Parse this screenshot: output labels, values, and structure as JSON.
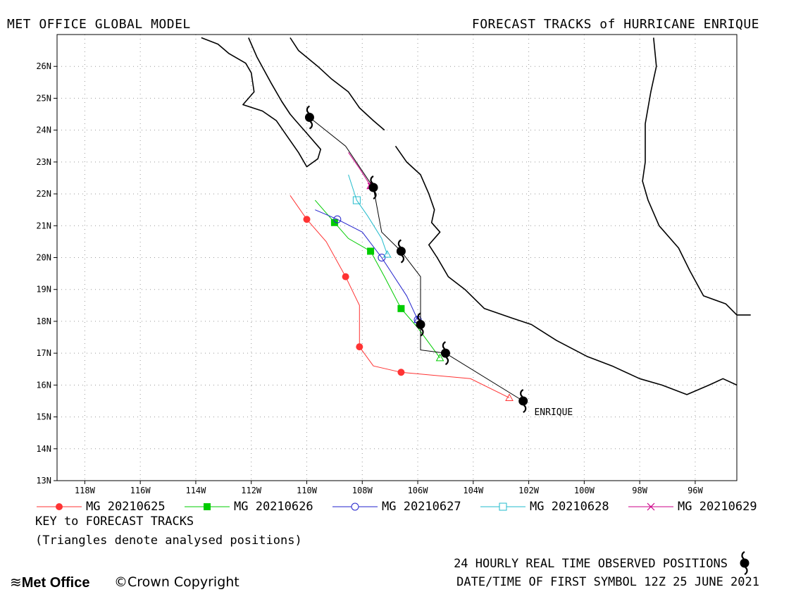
{
  "header": {
    "left": "MET OFFICE GLOBAL MODEL",
    "right": "FORECAST TRACKS of HURRICANE ENRIQUE"
  },
  "map": {
    "lon_range": [
      -119,
      -94.5
    ],
    "lat_range": [
      13,
      27
    ],
    "lon_ticks": [
      {
        "lon": -118,
        "label": "118W"
      },
      {
        "lon": -116,
        "label": "116W"
      },
      {
        "lon": -114,
        "label": "114W"
      },
      {
        "lon": -112,
        "label": "112W"
      },
      {
        "lon": -110,
        "label": "110W"
      },
      {
        "lon": -108,
        "label": "108W"
      },
      {
        "lon": -106,
        "label": "106W"
      },
      {
        "lon": -104,
        "label": "104W"
      },
      {
        "lon": -102,
        "label": "102W"
      },
      {
        "lon": -100,
        "label": "100W"
      },
      {
        "lon": -98,
        "label": "98W"
      },
      {
        "lon": -96,
        "label": "96W"
      }
    ],
    "lat_ticks": [
      {
        "lat": 13,
        "label": "13N"
      },
      {
        "lat": 14,
        "label": "14N"
      },
      {
        "lat": 15,
        "label": "15N"
      },
      {
        "lat": 16,
        "label": "16N"
      },
      {
        "lat": 17,
        "label": "17N"
      },
      {
        "lat": 18,
        "label": "18N"
      },
      {
        "lat": 19,
        "label": "19N"
      },
      {
        "lat": 20,
        "label": "20N"
      },
      {
        "lat": 21,
        "label": "21N"
      },
      {
        "lat": 22,
        "label": "22N"
      },
      {
        "lat": 23,
        "label": "23N"
      },
      {
        "lat": 24,
        "label": "24N"
      },
      {
        "lat": 25,
        "label": "25N"
      },
      {
        "lat": 26,
        "label": "26N"
      }
    ],
    "storm_label": "ENRIQUE",
    "storm_label_pos": {
      "lon": -101.8,
      "lat": 15.15
    }
  },
  "observed_track": [
    {
      "lon": -102.2,
      "lat": 15.5
    },
    {
      "lon": -105.0,
      "lat": 17.0
    },
    {
      "lon": -105.9,
      "lat": 17.9
    },
    {
      "lon": -106.6,
      "lat": 20.2
    },
    {
      "lon": -107.6,
      "lat": 22.2
    },
    {
      "lon": -109.9,
      "lat": 24.4
    }
  ],
  "observed_line": [
    {
      "lon": -102.2,
      "lat": 15.5
    },
    {
      "lon": -105.0,
      "lat": 17.0
    },
    {
      "lon": -105.9,
      "lat": 17.1
    },
    {
      "lon": -105.9,
      "lat": 17.9
    },
    {
      "lon": -105.9,
      "lat": 19.4
    },
    {
      "lon": -106.6,
      "lat": 20.2
    },
    {
      "lon": -107.3,
      "lat": 20.8
    },
    {
      "lon": -107.6,
      "lat": 22.2
    },
    {
      "lon": -108.6,
      "lat": 23.5
    },
    {
      "lon": -109.9,
      "lat": 24.4
    }
  ],
  "forecast_tracks": [
    {
      "name": "MG 20210625",
      "color": "#ff3333",
      "marker": "filled-circle",
      "analysed": {
        "lon": -102.7,
        "lat": 15.6
      },
      "line": [
        {
          "lon": -102.7,
          "lat": 15.6
        },
        {
          "lon": -104.1,
          "lat": 16.2
        },
        {
          "lon": -106.6,
          "lat": 16.4
        },
        {
          "lon": -107.6,
          "lat": 16.6
        },
        {
          "lon": -108.1,
          "lat": 17.2
        },
        {
          "lon": -108.1,
          "lat": 18.5
        },
        {
          "lon": -108.6,
          "lat": 19.4
        },
        {
          "lon": -109.3,
          "lat": 20.5
        },
        {
          "lon": -110.0,
          "lat": 21.2
        },
        {
          "lon": -110.6,
          "lat": 21.95
        }
      ],
      "points": [
        {
          "lon": -106.6,
          "lat": 16.4
        },
        {
          "lon": -108.1,
          "lat": 17.2
        },
        {
          "lon": -108.6,
          "lat": 19.4
        },
        {
          "lon": -110.0,
          "lat": 21.2
        }
      ]
    },
    {
      "name": "MG 20210626",
      "color": "#00cc00",
      "marker": "filled-square",
      "analysed": {
        "lon": -105.2,
        "lat": 16.85
      },
      "line": [
        {
          "lon": -105.2,
          "lat": 16.85
        },
        {
          "lon": -106.0,
          "lat": 17.8
        },
        {
          "lon": -106.6,
          "lat": 18.4
        },
        {
          "lon": -107.2,
          "lat": 19.4
        },
        {
          "lon": -107.7,
          "lat": 20.2
        },
        {
          "lon": -108.5,
          "lat": 20.6
        },
        {
          "lon": -109.0,
          "lat": 21.1
        },
        {
          "lon": -109.7,
          "lat": 21.8
        }
      ],
      "points": [
        {
          "lon": -106.6,
          "lat": 18.4
        },
        {
          "lon": -107.7,
          "lat": 20.2
        },
        {
          "lon": -109.0,
          "lat": 21.1
        }
      ]
    },
    {
      "name": "MG 20210627",
      "color": "#2222cc",
      "marker": "open-circle",
      "analysed": {
        "lon": -106.0,
        "lat": 18.05
      },
      "line": [
        {
          "lon": -106.0,
          "lat": 18.05
        },
        {
          "lon": -106.4,
          "lat": 18.8
        },
        {
          "lon": -107.0,
          "lat": 19.6
        },
        {
          "lon": -107.3,
          "lat": 20.0
        },
        {
          "lon": -108.0,
          "lat": 20.8
        },
        {
          "lon": -108.9,
          "lat": 21.2
        },
        {
          "lon": -109.7,
          "lat": 21.5
        }
      ],
      "points": [
        {
          "lon": -106.0,
          "lat": 18.05
        },
        {
          "lon": -107.3,
          "lat": 20.0
        },
        {
          "lon": -108.9,
          "lat": 21.2
        }
      ]
    },
    {
      "name": "MG 20210628",
      "color": "#22bbcc",
      "marker": "open-square",
      "analysed": {
        "lon": -107.1,
        "lat": 20.1
      },
      "line": [
        {
          "lon": -107.1,
          "lat": 20.1
        },
        {
          "lon": -107.3,
          "lat": 20.6
        },
        {
          "lon": -107.8,
          "lat": 21.3
        },
        {
          "lon": -108.2,
          "lat": 21.8
        },
        {
          "lon": -108.5,
          "lat": 22.6
        }
      ],
      "points": [
        {
          "lon": -108.2,
          "lat": 21.8
        }
      ]
    },
    {
      "name": "MG 20210629",
      "color": "#cc0088",
      "marker": "cross",
      "analysed": {
        "lon": -107.7,
        "lat": 22.25
      },
      "line": [
        {
          "lon": -107.7,
          "lat": 22.25
        },
        {
          "lon": -108.1,
          "lat": 22.8
        },
        {
          "lon": -108.5,
          "lat": 23.3
        }
      ],
      "points": [
        {
          "lon": -107.7,
          "lat": 22.25
        }
      ]
    }
  ],
  "coastlines": [
    [
      {
        "lon": -113.8,
        "lat": 26.9
      },
      {
        "lon": -113.2,
        "lat": 26.7
      },
      {
        "lon": -112.8,
        "lat": 26.4
      },
      {
        "lon": -112.2,
        "lat": 26.1
      },
      {
        "lon": -112.0,
        "lat": 25.8
      },
      {
        "lon": -111.9,
        "lat": 25.2
      },
      {
        "lon": -112.3,
        "lat": 24.8
      },
      {
        "lon": -111.6,
        "lat": 24.6
      },
      {
        "lon": -111.1,
        "lat": 24.3
      },
      {
        "lon": -110.7,
        "lat": 23.8
      },
      {
        "lon": -110.3,
        "lat": 23.3
      },
      {
        "lon": -110.0,
        "lat": 22.85
      },
      {
        "lon": -109.6,
        "lat": 23.1
      },
      {
        "lon": -109.5,
        "lat": 23.4
      },
      {
        "lon": -110.1,
        "lat": 24.0
      },
      {
        "lon": -110.4,
        "lat": 24.3
      },
      {
        "lon": -110.6,
        "lat": 24.5
      },
      {
        "lon": -110.9,
        "lat": 24.9
      },
      {
        "lon": -111.3,
        "lat": 25.5
      },
      {
        "lon": -111.8,
        "lat": 26.3
      },
      {
        "lon": -112.1,
        "lat": 26.9
      }
    ],
    [
      {
        "lon": -110.6,
        "lat": 26.9
      },
      {
        "lon": -110.3,
        "lat": 26.5
      },
      {
        "lon": -109.6,
        "lat": 26.0
      },
      {
        "lon": -109.1,
        "lat": 25.6
      },
      {
        "lon": -108.5,
        "lat": 25.2
      },
      {
        "lon": -108.1,
        "lat": 24.7
      },
      {
        "lon": -107.6,
        "lat": 24.3
      },
      {
        "lon": -107.2,
        "lat": 24.0
      }
    ],
    [
      {
        "lon": -106.8,
        "lat": 23.5
      },
      {
        "lon": -106.4,
        "lat": 23.0
      },
      {
        "lon": -105.9,
        "lat": 22.6
      },
      {
        "lon": -105.6,
        "lat": 22.0
      },
      {
        "lon": -105.4,
        "lat": 21.5
      },
      {
        "lon": -105.5,
        "lat": 21.1
      },
      {
        "lon": -105.2,
        "lat": 20.8
      },
      {
        "lon": -105.6,
        "lat": 20.4
      },
      {
        "lon": -105.3,
        "lat": 20.0
      },
      {
        "lon": -104.9,
        "lat": 19.4
      },
      {
        "lon": -104.3,
        "lat": 19.0
      },
      {
        "lon": -103.6,
        "lat": 18.4
      },
      {
        "lon": -102.6,
        "lat": 18.1
      },
      {
        "lon": -101.9,
        "lat": 17.9
      },
      {
        "lon": -101.0,
        "lat": 17.4
      },
      {
        "lon": -99.9,
        "lat": 16.9
      },
      {
        "lon": -99.0,
        "lat": 16.6
      },
      {
        "lon": -98.0,
        "lat": 16.2
      },
      {
        "lon": -97.2,
        "lat": 16.0
      },
      {
        "lon": -96.3,
        "lat": 15.7
      },
      {
        "lon": -95.5,
        "lat": 16.0
      },
      {
        "lon": -95.0,
        "lat": 16.2
      },
      {
        "lon": -94.5,
        "lat": 16.0
      }
    ],
    [
      {
        "lon": -97.5,
        "lat": 26.9
      },
      {
        "lon": -97.4,
        "lat": 26.0
      },
      {
        "lon": -97.6,
        "lat": 25.2
      },
      {
        "lon": -97.8,
        "lat": 24.2
      },
      {
        "lon": -97.8,
        "lat": 23.0
      },
      {
        "lon": -97.9,
        "lat": 22.4
      },
      {
        "lon": -97.7,
        "lat": 21.8
      },
      {
        "lon": -97.3,
        "lat": 21.0
      },
      {
        "lon": -96.6,
        "lat": 20.3
      },
      {
        "lon": -96.2,
        "lat": 19.6
      },
      {
        "lon": -95.7,
        "lat": 18.8
      },
      {
        "lon": -94.9,
        "lat": 18.55
      },
      {
        "lon": -94.5,
        "lat": 18.2
      },
      {
        "lon": -94.0,
        "lat": 18.2
      }
    ]
  ],
  "legend": [
    {
      "label": "MG 20210625"
    },
    {
      "label": "MG 20210626"
    },
    {
      "label": "MG 20210627"
    },
    {
      "label": "MG 20210628"
    },
    {
      "label": "MG 20210629"
    }
  ],
  "footer": {
    "key_title": "KEY to FORECAST TRACKS",
    "key_note": "(Triangles denote analysed positions)",
    "obs_note": "24 HOURLY REAL TIME OBSERVED POSITIONS",
    "first_symbol": "DATE/TIME OF FIRST SYMBOL 12Z 25 JUNE 2021",
    "logo": "Met Office",
    "copyright": "©Crown Copyright"
  }
}
